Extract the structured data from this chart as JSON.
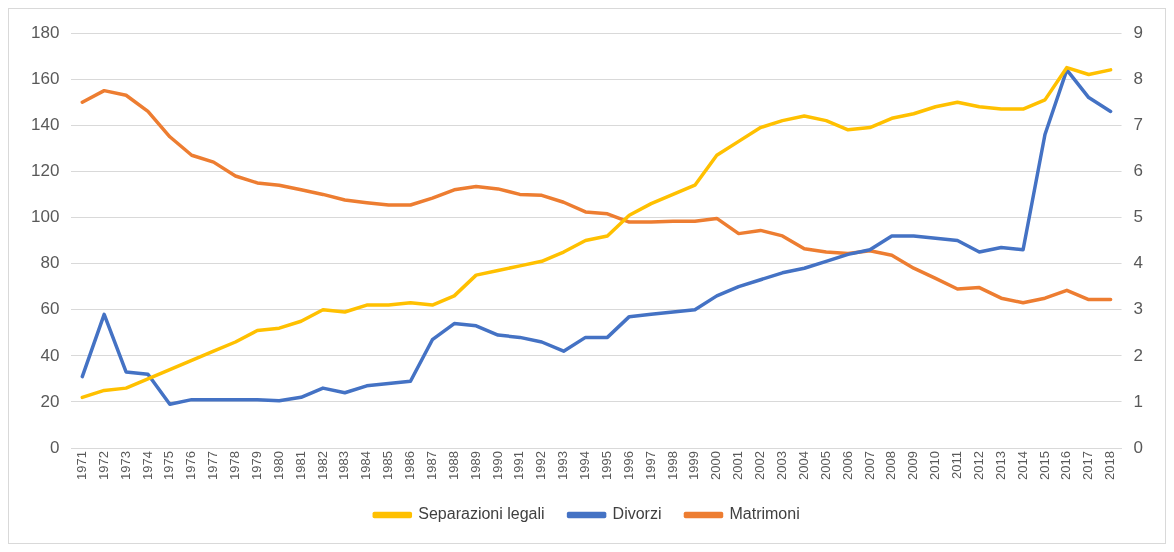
{
  "chart_data": {
    "type": "line",
    "categories": [
      "1971",
      "1972",
      "1973",
      "1974",
      "1975",
      "1976",
      "1977",
      "1978",
      "1979",
      "1980",
      "1981",
      "1982",
      "1983",
      "1984",
      "1985",
      "1986",
      "1987",
      "1988",
      "1989",
      "1990",
      "1991",
      "1992",
      "1993",
      "1994",
      "1995",
      "1996",
      "1997",
      "1998",
      "1999",
      "2000",
      "2001",
      "2002",
      "2003",
      "2004",
      "2005",
      "2006",
      "2007",
      "2008",
      "2009",
      "2010",
      "2011",
      "2012",
      "2013",
      "2014",
      "2015",
      "2016",
      "2017",
      "2018"
    ],
    "series": [
      {
        "name": "Separazioni legali",
        "color": "#ffc000",
        "values": [
          22,
          25,
          26,
          30,
          34,
          38,
          42,
          46,
          51,
          52,
          55,
          60,
          59,
          62,
          62,
          63,
          62,
          66,
          75,
          77,
          79,
          81,
          85,
          90,
          92,
          101,
          106,
          110,
          114,
          127,
          133,
          139,
          142,
          144,
          142,
          138,
          139,
          143,
          145,
          148,
          150,
          148,
          147,
          147,
          151,
          165,
          162,
          164
        ]
      },
      {
        "name": "Divorzi",
        "color": "#4472c4",
        "values": [
          31,
          58,
          33,
          32,
          19,
          21,
          21,
          21,
          21,
          20.5,
          22,
          26,
          24,
          27,
          28,
          29,
          47,
          54,
          53,
          49,
          48,
          46,
          42,
          48,
          48,
          57,
          58,
          59,
          60,
          66,
          70,
          73,
          76,
          78,
          81,
          84,
          86,
          92,
          92,
          91,
          90,
          85,
          87,
          86,
          136,
          164,
          152,
          146
        ]
      },
      {
        "name": "Matrimoni",
        "color": "#ed7d31",
        "axis": "y2",
        "values": [
          7.5,
          7.75,
          7.65,
          7.3,
          6.75,
          6.35,
          6.2,
          5.9,
          5.75,
          5.7,
          5.6,
          5.5,
          5.38,
          5.32,
          5.27,
          5.27,
          5.42,
          5.6,
          5.67,
          5.62,
          5.5,
          5.48,
          5.33,
          5.12,
          5.08,
          4.9,
          4.9,
          4.92,
          4.92,
          4.98,
          4.65,
          4.72,
          4.6,
          4.32,
          4.25,
          4.22,
          4.28,
          4.18,
          3.9,
          3.68,
          3.45,
          3.48,
          3.25,
          3.15,
          3.25,
          3.42,
          3.22,
          3.22
        ]
      }
    ],
    "ylim": [
      0,
      180
    ],
    "yticks": [
      0,
      20,
      40,
      60,
      80,
      100,
      120,
      140,
      160,
      180
    ],
    "y2lim": [
      0,
      9
    ],
    "y2ticks": [
      0,
      1,
      2,
      3,
      4,
      5,
      6,
      7,
      8,
      9
    ],
    "grid": "y",
    "legend": "bottom",
    "marker": "none",
    "line_style": "solid"
  }
}
